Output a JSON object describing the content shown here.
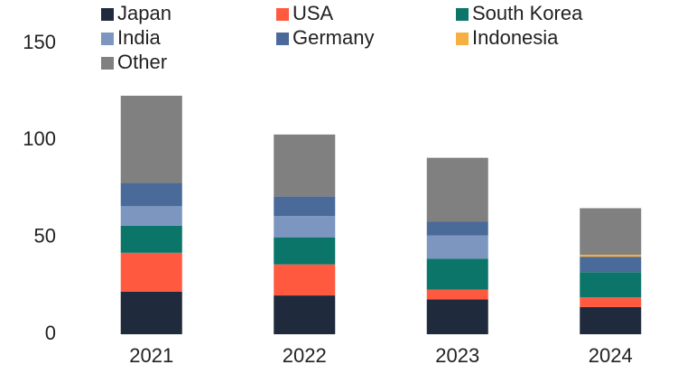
{
  "chart_data": {
    "type": "stacked_bar",
    "categories": [
      "2021",
      "2022",
      "2023",
      "2024"
    ],
    "series": [
      {
        "name": "Japan",
        "color": "#1f2a3c",
        "values": [
          22,
          20,
          18,
          14
        ]
      },
      {
        "name": "USA",
        "color": "#ff5a40",
        "values": [
          20,
          16,
          5,
          5
        ]
      },
      {
        "name": "South Korea",
        "color": "#0a7568",
        "values": [
          14,
          14,
          16,
          13
        ]
      },
      {
        "name": "India",
        "color": "#7c96bf",
        "values": [
          10,
          11,
          12,
          0
        ]
      },
      {
        "name": "Germany",
        "color": "#4a6a9a",
        "values": [
          12,
          10,
          7,
          8
        ]
      },
      {
        "name": "Indonesia",
        "color": "#f5b041",
        "values": [
          0,
          0,
          0,
          1
        ]
      },
      {
        "name": "Other",
        "color": "#808080",
        "values": [
          45,
          32,
          33,
          24
        ]
      }
    ],
    "ylim": [
      0,
      150
    ],
    "yticks": [
      0,
      50,
      100,
      150
    ],
    "grid": false
  }
}
